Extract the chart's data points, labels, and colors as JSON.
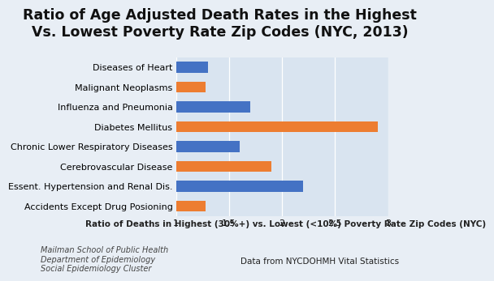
{
  "title": "Ratio of Age Adjusted Death Rates in the Highest\nVs. Lowest Poverty Rate Zip Codes (NYC, 2013)",
  "categories": [
    "Diseases of Heart",
    "Malignant Neoplasms",
    "Influenza and Pneumonia",
    "Diabetes Mellitus",
    "Chronic Lower Respiratory Diseases",
    "Cerebrovascular Disease",
    "Essent. Hypertension and Renal Dis.",
    "Accidents Except Drug Posioning"
  ],
  "values": [
    1.3,
    1.28,
    1.7,
    2.9,
    1.6,
    1.9,
    2.2,
    1.28
  ],
  "colors": [
    "#4472C4",
    "#ED7D31",
    "#4472C4",
    "#ED7D31",
    "#4472C4",
    "#ED7D31",
    "#4472C4",
    "#ED7D31"
  ],
  "xlabel": "Ratio of Deaths in Highest (30%+) vs. Lowest (<10%) Poverty Rate Zip Codes (NYC)",
  "xlim": [
    1,
    3
  ],
  "xticks": [
    1,
    1.5,
    2,
    2.5,
    3
  ],
  "xtick_labels": [
    "1",
    "1,5",
    "2",
    "2,5",
    "3"
  ],
  "plot_bg_color": "#D9E4F0",
  "fig_bg_color": "#E8EEF5",
  "footer_left": "Mailman School of Public Health\nDepartment of Epidemiology\nSocial Epidemiology Cluster",
  "footer_right": "Data from NYCDOHMH Vital Statistics",
  "title_fontsize": 12.5,
  "xlabel_fontsize": 7.5,
  "category_fontsize": 8,
  "tick_fontsize": 8,
  "footer_fontsize": 7
}
